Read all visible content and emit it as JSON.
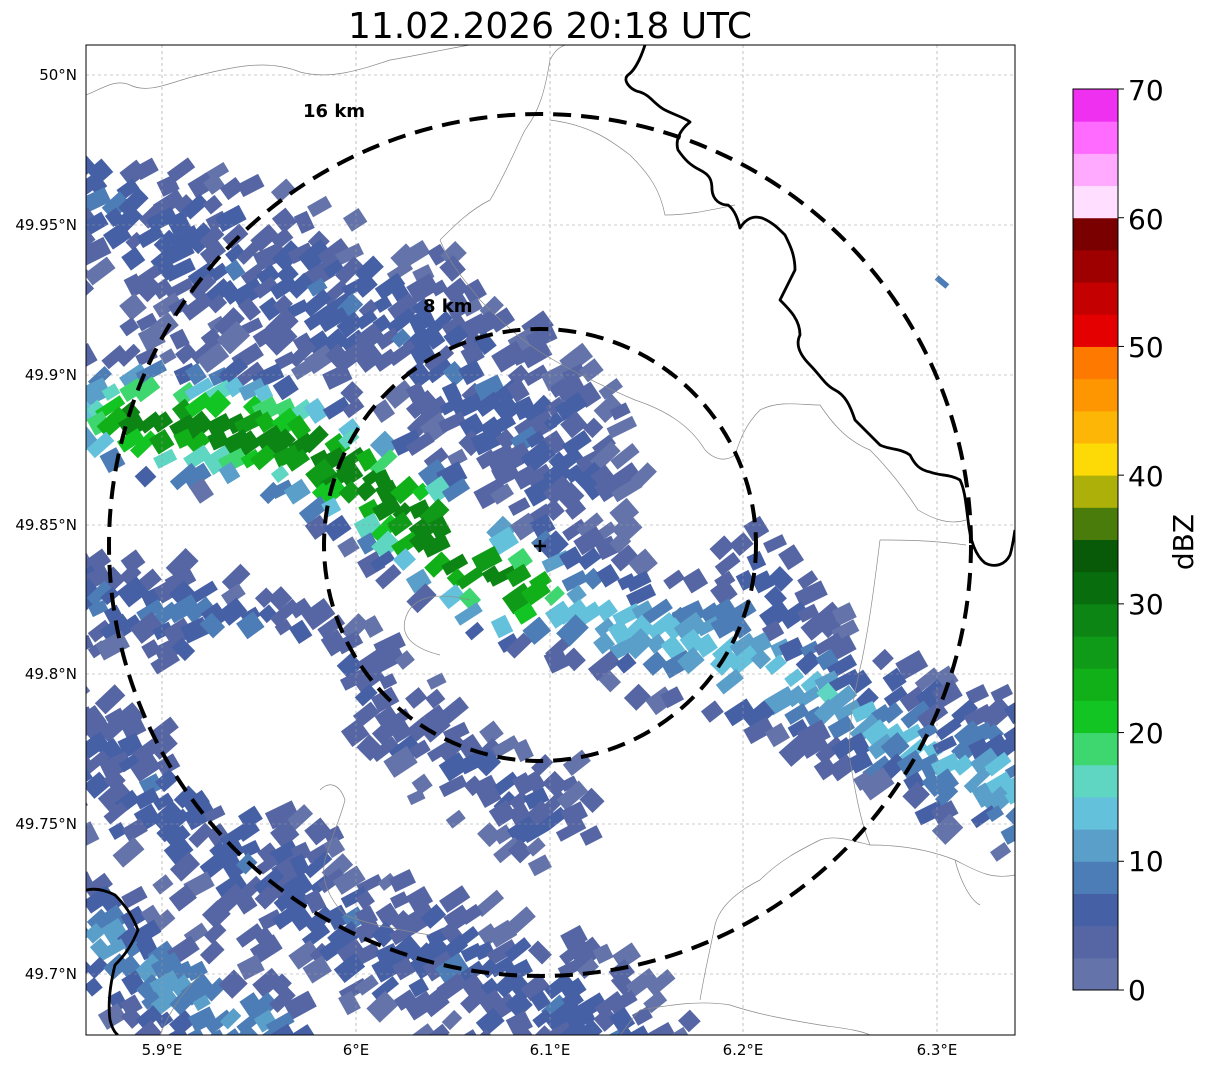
{
  "title": "11.02.2026 20:18 UTC",
  "lat_ticks": [
    "50°N",
    "49.95°N",
    "49.9°N",
    "49.85°N",
    "49.8°N",
    "49.75°N",
    "49.7°N"
  ],
  "lon_ticks": [
    "5.9°E",
    "6°E",
    "6.1°E",
    "6.2°E",
    "6.3°E"
  ],
  "range_rings": [
    {
      "label": "16 km",
      "radius_km": 16
    },
    {
      "label": "8 km",
      "radius_km": 8
    }
  ],
  "radar_site": {
    "lon": 6.096,
    "lat": 49.843
  },
  "extent": {
    "lon_min": 5.861,
    "lon_max": 6.339,
    "lat_min": 49.68,
    "lat_max": 50.01
  },
  "colorbar": {
    "label": "dBZ",
    "ticks": [
      "0",
      "10",
      "20",
      "30",
      "40",
      "50",
      "60",
      "70"
    ],
    "min": 0,
    "max": 70,
    "colors": [
      "#6474aa",
      "#5666a4",
      "#4660a6",
      "#4c7db6",
      "#5a9fc9",
      "#63c1dc",
      "#5ed6c2",
      "#3ed66f",
      "#12c522",
      "#11b018",
      "#0f9b18",
      "#0c8514",
      "#086e0d",
      "#085a08",
      "#4a7c0b",
      "#adb008",
      "#fdd905",
      "#fdb605",
      "#fd9600",
      "#fd7900",
      "#e40000",
      "#c40000",
      "#9e0000",
      "#7a0000",
      "#ffdeff",
      "#ffaaff",
      "#ff6aff",
      "#f030f0"
    ]
  }
}
